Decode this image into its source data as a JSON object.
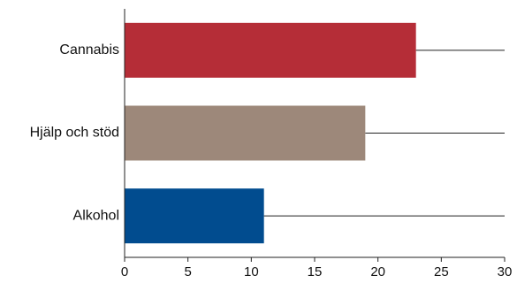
{
  "chart_data": {
    "type": "bar",
    "orientation": "horizontal",
    "categories": [
      "Cannabis",
      "Hjälp och stöd",
      "Alkohol"
    ],
    "values": [
      23,
      19,
      11
    ],
    "colors": [
      "#b52d37",
      "#9d887a",
      "#014c8f"
    ],
    "xlim": [
      0,
      30
    ],
    "xticks": [
      "0",
      "5",
      "10",
      "15",
      "20",
      "25",
      "30"
    ],
    "grid": false,
    "legend": "none"
  }
}
